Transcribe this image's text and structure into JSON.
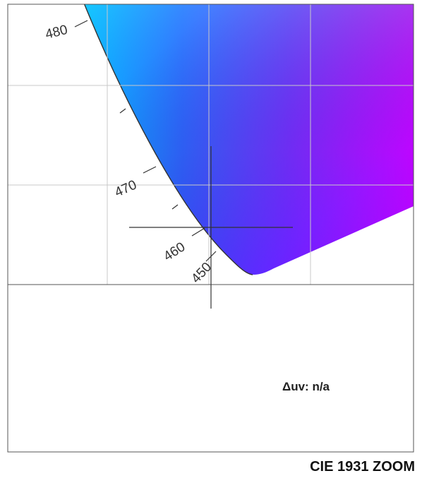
{
  "diagram": {
    "wavelength_labels": [
      "480",
      "470",
      "460",
      "450"
    ],
    "delta_uv": "Δuv: n/a",
    "caption": "CIE 1931 ZOOM"
  },
  "colors": {
    "cyan": "#00c4ff",
    "blue": "#2f3bff",
    "violet": "#7b10ff",
    "magenta": "#d800ff",
    "frame": "#555555",
    "grid": "#c8c8c8"
  }
}
